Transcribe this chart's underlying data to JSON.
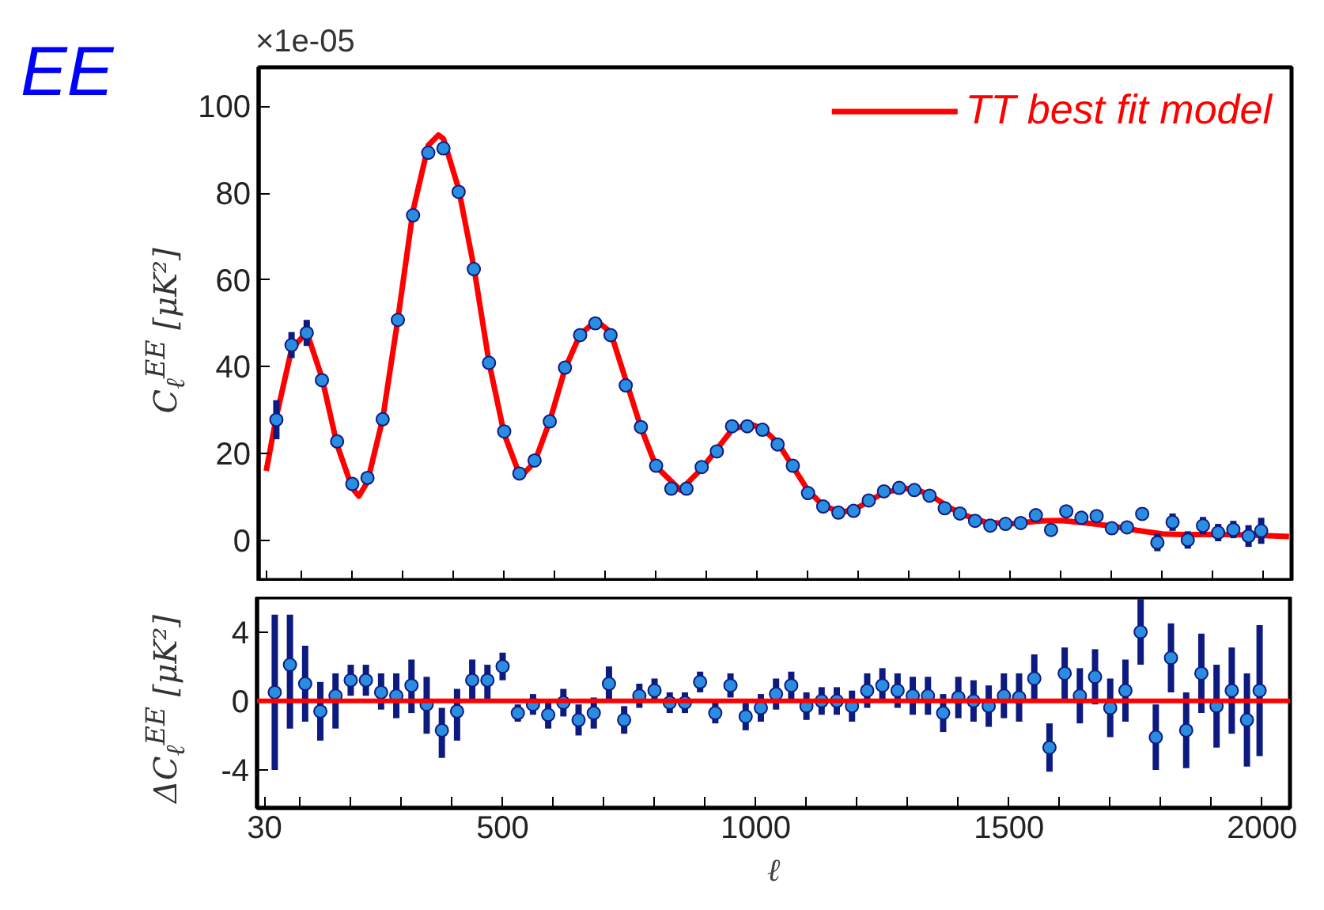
{
  "chart_data": [
    {
      "type": "scatter",
      "title": "EE",
      "ylabel": "C$_{ℓ}$$^{EE}$ [μK²]",
      "annotations": [
        "×1e-05"
      ],
      "legend": "top right",
      "grid": false,
      "tick_labels": "y",
      "xlim": [
        15,
        2055
      ],
      "xticks": [
        30,
        {
          "value": 100,
          "label": null
        },
        {
          "value": 200,
          "label": null
        },
        {
          "value": 300,
          "label": null
        },
        {
          "value": 400,
          "label": null
        },
        500,
        {
          "value": 600,
          "label": null
        },
        {
          "value": 700,
          "label": null
        },
        {
          "value": 800,
          "label": null
        },
        {
          "value": 900,
          "label": null
        },
        1000,
        {
          "value": 1100,
          "label": null
        },
        {
          "value": 1200,
          "label": null
        },
        {
          "value": 1300,
          "label": null
        },
        {
          "value": 1400,
          "label": null
        },
        1500,
        {
          "value": 1600,
          "label": null
        },
        {
          "value": 1700,
          "label": null
        },
        {
          "value": 1800,
          "label": null
        },
        {
          "value": 1900,
          "label": null
        },
        2000
      ],
      "ylim": [
        -9.5,
        109
      ],
      "yticks": [
        0,
        20,
        40,
        60,
        80,
        100
      ],
      "series": [
        {
          "type": "line",
          "name": "TT best fit model",
          "color": "#ff0000",
          "x": [
            30,
            50,
            80,
            110,
            140,
            170,
            200,
            213,
            230,
            260,
            290,
            320,
            350,
            370,
            380,
            410,
            440,
            470,
            500,
            532,
            560,
            590,
            620,
            650,
            682,
            710,
            740,
            770,
            800,
            848,
            890,
            920,
            950,
            985,
            1010,
            1040,
            1070,
            1100,
            1130,
            1165,
            1190,
            1220,
            1250,
            1290,
            1320,
            1350,
            1380,
            1410,
            1450,
            1500,
            1560,
            1600,
            1650,
            1700,
            1750,
            1800,
            1850,
            1900,
            1950,
            2000,
            2050
          ],
          "values": [
            16,
            28.5,
            44,
            48,
            37.5,
            22,
            12,
            10.2,
            13.5,
            28,
            51,
            76,
            91,
            93.4,
            92.5,
            81,
            63,
            41,
            24.5,
            14.6,
            18,
            27.5,
            39.5,
            47.5,
            50.6,
            48,
            37,
            26,
            17,
            11.6,
            16.5,
            21,
            25.5,
            26.8,
            25.8,
            22.5,
            17,
            11.5,
            8,
            6.5,
            7,
            9,
            11,
            12,
            11.5,
            9.8,
            7.5,
            5.8,
            4.2,
            3.8,
            4.5,
            4.6,
            4,
            3.3,
            2.3,
            1.5,
            1.3,
            1.4,
            1.3,
            1.1,
            0.9
          ]
        },
        {
          "type": "scatter",
          "marker": "circle",
          "color": "#2a8de0",
          "x": [
            50,
            80,
            110,
            140,
            170,
            200,
            230,
            260,
            290,
            320,
            350,
            380,
            410,
            440,
            470,
            500,
            530,
            560,
            590,
            620,
            650,
            680,
            710,
            740,
            770,
            800,
            830,
            860,
            890,
            920,
            950,
            980,
            1010,
            1040,
            1070,
            1100,
            1130,
            1160,
            1190,
            1220,
            1250,
            1280,
            1310,
            1340,
            1370,
            1400,
            1430,
            1460,
            1490,
            1520,
            1550,
            1580,
            1610,
            1640,
            1670,
            1700,
            1730,
            1760,
            1790,
            1820,
            1850,
            1880,
            1910,
            1940,
            1970,
            1995
          ],
          "values": [
            27.8,
            45,
            47.8,
            36.9,
            22.8,
            13,
            14.4,
            27.9,
            50.8,
            74.9,
            89.3,
            90.3,
            80.3,
            62.5,
            40.9,
            25.1,
            15.4,
            18.4,
            27.4,
            39.8,
            47.3,
            50,
            47.3,
            35.7,
            26.1,
            17.2,
            11.9,
            11.9,
            16.9,
            20.5,
            26.3,
            26.3,
            25.5,
            22.1,
            17.2,
            10.9,
            7.8,
            6.4,
            6.8,
            9.2,
            11.3,
            12.1,
            11.6,
            10.3,
            7.4,
            6.2,
            4.5,
            3.4,
            3.8,
            4,
            5.8,
            2.4,
            6.7,
            5.2,
            5.6,
            2.8,
            3,
            6.1,
            -0.5,
            4.2,
            0.1,
            3.4,
            1.8,
            2.5,
            1,
            2.2
          ],
          "errors": [
            4.5,
            3,
            3,
            null,
            null,
            null,
            null,
            null,
            null,
            null,
            null,
            null,
            null,
            null,
            null,
            null,
            null,
            null,
            null,
            null,
            null,
            null,
            null,
            null,
            null,
            null,
            null,
            null,
            null,
            null,
            null,
            null,
            null,
            null,
            null,
            null,
            null,
            null,
            null,
            null,
            null,
            null,
            null,
            null,
            null,
            null,
            null,
            null,
            null,
            null,
            null,
            null,
            null,
            null,
            null,
            null,
            null,
            1.5,
            2,
            2,
            2,
            2,
            2,
            2,
            2.5,
            3
          ]
        }
      ]
    },
    {
      "type": "scatter",
      "xlabel": "ℓ",
      "ylabel": "ΔC$_{ℓ}$$^{EE}$ [μK²]",
      "marker": "circle",
      "grid": false,
      "color": "#2a8de0",
      "xlim": [
        15,
        2055
      ],
      "xticks": [
        30,
        {
          "value": 100,
          "label": null
        },
        {
          "value": 200,
          "label": null
        },
        {
          "value": 300,
          "label": null
        },
        {
          "value": 400,
          "label": null
        },
        500,
        {
          "value": 600,
          "label": null
        },
        {
          "value": 700,
          "label": null
        },
        {
          "value": 800,
          "label": null
        },
        {
          "value": 900,
          "label": null
        },
        1000,
        {
          "value": 1100,
          "label": null
        },
        {
          "value": 1200,
          "label": null
        },
        {
          "value": 1300,
          "label": null
        },
        {
          "value": 1400,
          "label": null
        },
        1500,
        {
          "value": 1600,
          "label": null
        },
        {
          "value": 1700,
          "label": null
        },
        {
          "value": 1800,
          "label": null
        },
        {
          "value": 1900,
          "label": null
        },
        2000
      ],
      "ylim": [
        -6.2,
        6
      ],
      "yticks": [
        -4,
        0,
        4
      ],
      "ref_lines": [
        {
          "axis": "y",
          "value": 0,
          "color": "#ff0000"
        }
      ],
      "x": [
        50,
        80,
        110,
        140,
        170,
        200,
        230,
        260,
        290,
        320,
        350,
        380,
        410,
        440,
        470,
        500,
        530,
        560,
        590,
        620,
        650,
        680,
        710,
        740,
        770,
        800,
        830,
        860,
        890,
        920,
        950,
        980,
        1010,
        1040,
        1070,
        1100,
        1130,
        1160,
        1190,
        1220,
        1250,
        1280,
        1310,
        1340,
        1370,
        1400,
        1430,
        1460,
        1490,
        1520,
        1550,
        1580,
        1610,
        1640,
        1670,
        1700,
        1730,
        1760,
        1790,
        1820,
        1850,
        1880,
        1910,
        1940,
        1970,
        1995
      ],
      "values": [
        0.5,
        2.1,
        1.0,
        -0.6,
        0.3,
        1.2,
        1.2,
        0.5,
        0.3,
        0.9,
        -0.2,
        -1.7,
        -0.6,
        1.2,
        1.2,
        2.0,
        -0.7,
        -0.2,
        -0.8,
        -0.1,
        -1.1,
        -0.7,
        1.0,
        -1.1,
        0.3,
        0.6,
        -0.1,
        -0.1,
        1.1,
        -0.7,
        0.9,
        -0.9,
        -0.4,
        0.4,
        0.9,
        -0.3,
        0,
        0,
        -0.3,
        0.6,
        0.9,
        0.6,
        0.3,
        0.3,
        -0.7,
        0.2,
        0,
        -0.3,
        0.3,
        0.2,
        1.3,
        -2.7,
        1.6,
        0.3,
        1.4,
        -0.4,
        0.6,
        4.0,
        -2.1,
        2.5,
        -1.7,
        1.6,
        -0.3,
        0.6,
        -1.1,
        0.6
      ],
      "errors": [
        [
          -4,
          5
        ],
        [
          -1.6,
          5
        ],
        [
          -1.2,
          3.2
        ],
        [
          -2.3,
          1.1
        ],
        [
          -1.6,
          1.6
        ],
        [
          0.3,
          2.1
        ],
        [
          0.3,
          2.1
        ],
        [
          -0.5,
          1.6
        ],
        [
          -1,
          1.6
        ],
        [
          -0.7,
          2.4
        ],
        [
          -1.9,
          1.4
        ],
        [
          -3.3,
          -0.4
        ],
        [
          -2.3,
          0.7
        ],
        [
          -0.1,
          2.4
        ],
        [
          0.1,
          2.1
        ],
        [
          1.2,
          2.8
        ],
        0.5,
        0.6,
        0.8,
        0.8,
        0.9,
        0.9,
        1.0,
        0.8,
        0.7,
        0.7,
        0.6,
        0.6,
        0.6,
        0.6,
        0.7,
        0.8,
        0.8,
        0.9,
        0.8,
        0.8,
        0.8,
        0.8,
        0.9,
        1,
        1,
        1,
        1.1,
        1.1,
        1.1,
        1.2,
        1.2,
        1.2,
        1.3,
        1.4,
        1.4,
        1.4,
        1.5,
        1.6,
        1.6,
        1.7,
        1.8,
        1.9,
        1.9,
        2.0,
        2.2,
        2.3,
        2.4,
        2.5,
        2.7,
        3.8
      ]
    }
  ]
}
